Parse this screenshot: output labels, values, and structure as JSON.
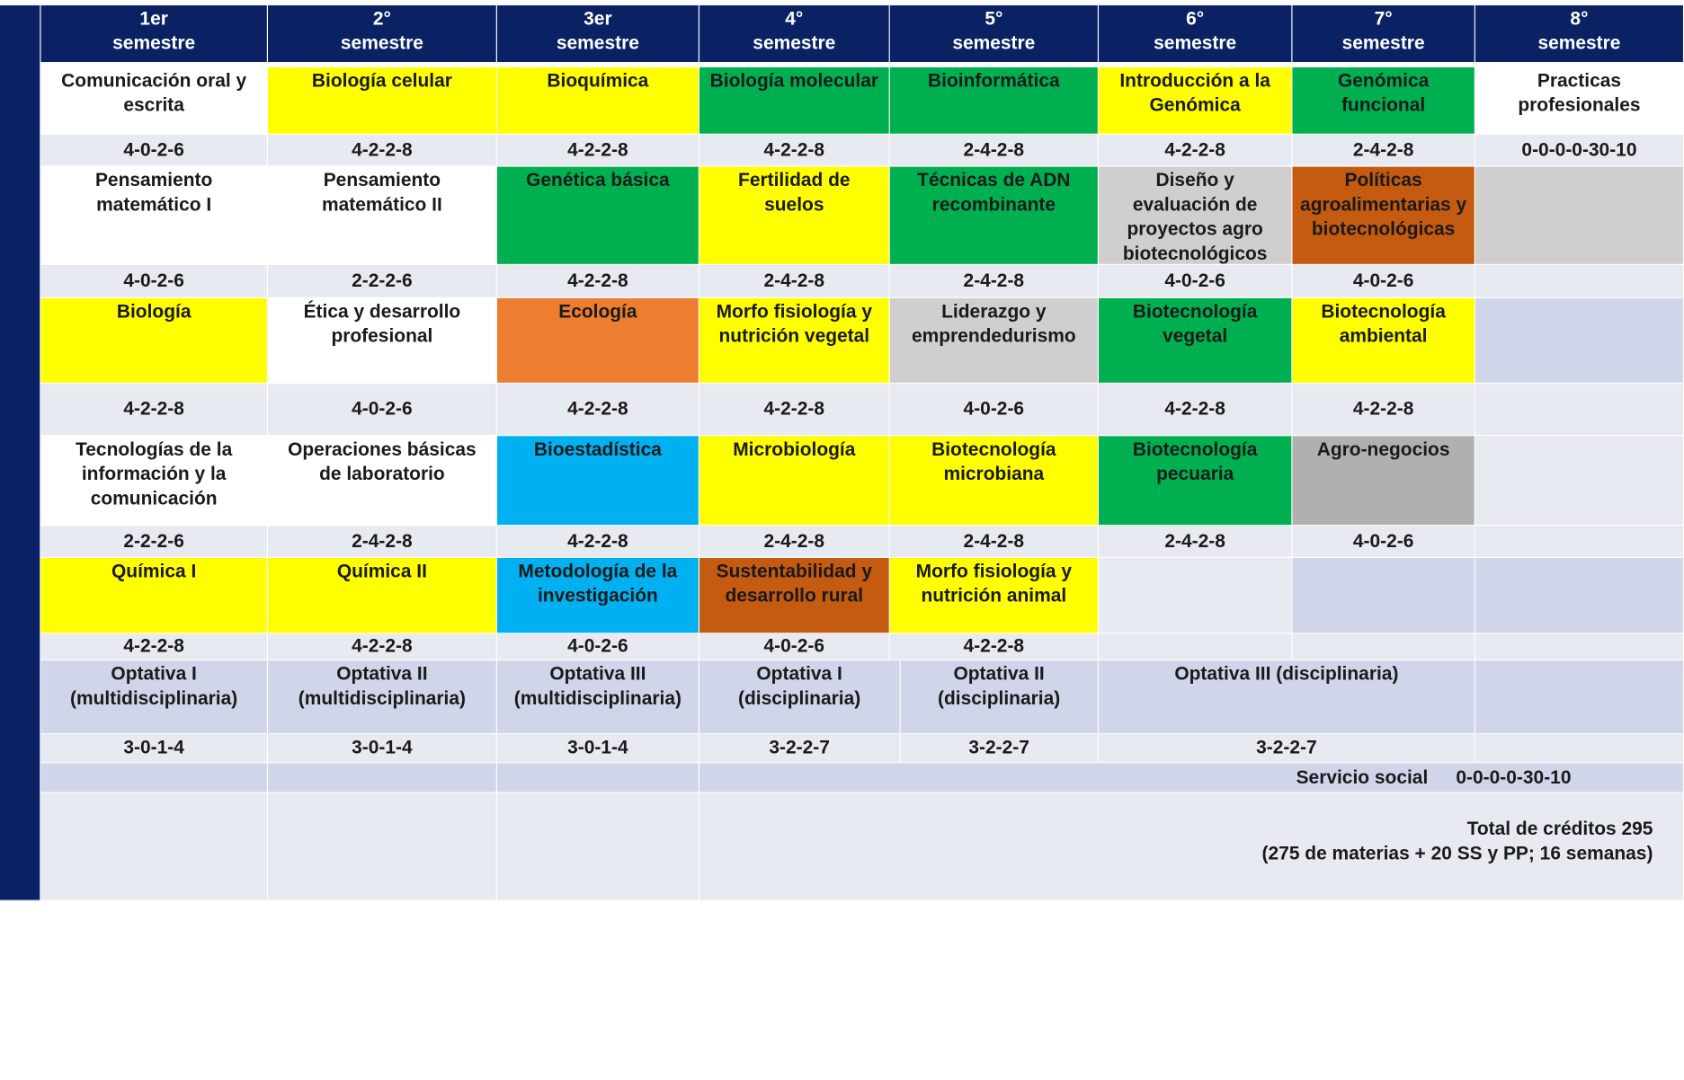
{
  "semesters": [
    "1er\nsemestre",
    "2°\nsemestre",
    "3er\nsemestre",
    "4°\nsemestre",
    "5°\nsemestre",
    "6°\nsemestre",
    "7°\nsemestre",
    "8°\nsemestre"
  ],
  "colors": {
    "header_navy": "#0a2164",
    "yellow": "#ffff00",
    "green": "#00b050",
    "gray": "#d0cece",
    "dark_gray": "#b0b0b0",
    "brown": "#c55a11",
    "orange": "#ed7d31",
    "blue": "#00b0f0",
    "light_blue_gray": "#d0d5ea",
    "row_band": "#e8eaf2",
    "white": "#ffffff"
  },
  "rows": [
    {
      "subjects": [
        "Comunicación  oral y escrita",
        "Biología celular",
        "Bioquímica",
        "Biología molecular",
        "Bioinformática",
        "Introducción  a la Genómica",
        "Genómica funcional",
        "Practicas profesionales"
      ],
      "credits": [
        "4-0-2-6",
        "4-2-2-8",
        "4-2-2-8",
        "4-2-2-8",
        "2-4-2-8",
        "4-2-2-8",
        "2-4-2-8",
        "0-0-0-0-30-10"
      ]
    },
    {
      "subjects": [
        "Pensamiento matemático  I",
        "Pensamiento matemático  II",
        "Genética básica",
        "Fertilidad  de suelos",
        "Técnicas de ADN recombinante",
        "Diseño y evaluación  de proyectos agro biotecnológicos",
        "Políticas agroalimentarias y biotecnológicas",
        ""
      ],
      "credits": [
        "4-0-2-6",
        "2-2-2-6",
        "4-2-2-8",
        "2-4-2-8",
        "2-4-2-8",
        "4-0-2-6",
        "4-0-2-6",
        ""
      ]
    },
    {
      "subjects": [
        "Biología",
        "Ética y desarrollo profesional",
        "Ecología",
        "Morfo fisiología  y nutrición  vegetal",
        "Liderazgo  y emprendedurismo",
        "Biotecnología vegetal",
        "Biotecnología ambiental",
        ""
      ],
      "credits": [
        "4-2-2-8",
        "4-0-2-6",
        "4-2-2-8",
        "4-2-2-8",
        "4-0-2-6",
        "4-2-2-8",
        "4-2-2-8",
        ""
      ]
    },
    {
      "subjects": [
        "Tecnologías de la información  y la comunicación",
        "Operaciones  básicas de laboratorio",
        "Bioestadística",
        "Microbiología",
        "Biotecnología microbiana",
        "Biotecnología pecuaria",
        "Agro-negocios",
        ""
      ],
      "credits": [
        "2-2-2-6",
        "2-4-2-8",
        "4-2-2-8",
        "2-4-2-8",
        "2-4-2-8",
        "2-4-2-8",
        "4-0-2-6",
        ""
      ]
    },
    {
      "subjects": [
        "Química  I",
        "Química  II",
        "Metodología  de la investigación",
        "Sustentabilidad  y desarrollo  rural",
        "Morfo fisiología  y nutrición  animal",
        "",
        "",
        ""
      ],
      "credits": [
        "4-2-2-8",
        "4-2-2-8",
        "4-0-2-6",
        "4-0-2-6",
        "4-2-2-8",
        "",
        "",
        ""
      ]
    }
  ],
  "optativas": {
    "subjects": [
      "Optativa I\n(multidisciplinaria)",
      "Optativa II\n(multidisciplinaria)",
      "Optativa III\n(multidisciplinaria)",
      "Optativa I\n(disciplinaria)",
      "Optativa II\n(disciplinaria)",
      "Optativa III  (disciplinaria)"
    ],
    "credits": [
      "3-0-1-4",
      "3-0-1-4",
      "3-0-1-4",
      "3-2-2-7",
      "3-2-2-7",
      "3-2-2-7"
    ]
  },
  "servicio_social": {
    "label": "Servicio social",
    "credits": "0-0-0-0-30-10"
  },
  "total": {
    "line1": "Total de créditos  295",
    "line2": "(275 de materias   + 20 SS y PP; 16 semanas)"
  }
}
